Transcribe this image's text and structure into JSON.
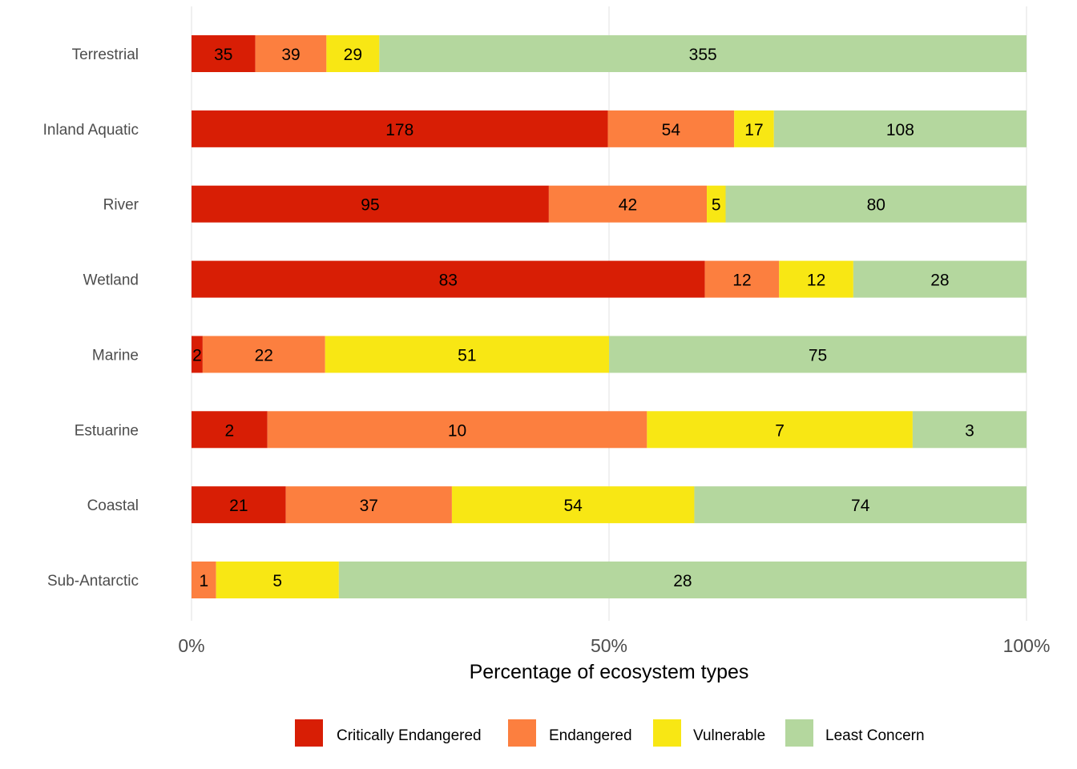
{
  "chart_data": {
    "type": "bar",
    "orientation": "horizontal",
    "stacked": "percent",
    "title": "",
    "xlabel": "Percentage of ecosystem types",
    "ylabel": "",
    "xlim": [
      0,
      100
    ],
    "x_ticks": [
      "0%",
      "50%",
      "100%"
    ],
    "x_tick_values": [
      0,
      50,
      100
    ],
    "grid": true,
    "legend_position": "bottom",
    "categories": [
      "Terrestrial",
      "Inland Aquatic",
      "River",
      "Wetland",
      "Marine",
      "Estuarine",
      "Coastal",
      "Sub-Antarctic"
    ],
    "series": [
      {
        "name": "Critically Endangered",
        "color": "#d81e05",
        "values": [
          35,
          178,
          95,
          83,
          2,
          2,
          21,
          0
        ]
      },
      {
        "name": "Endangered",
        "color": "#fc7f3f",
        "values": [
          39,
          54,
          42,
          12,
          22,
          10,
          37,
          1
        ]
      },
      {
        "name": "Vulnerable",
        "color": "#f8e714",
        "values": [
          29,
          17,
          5,
          12,
          51,
          7,
          54,
          5
        ]
      },
      {
        "name": "Least Concern",
        "color": "#b4d79e",
        "values": [
          355,
          108,
          80,
          28,
          75,
          3,
          74,
          28
        ]
      }
    ]
  }
}
